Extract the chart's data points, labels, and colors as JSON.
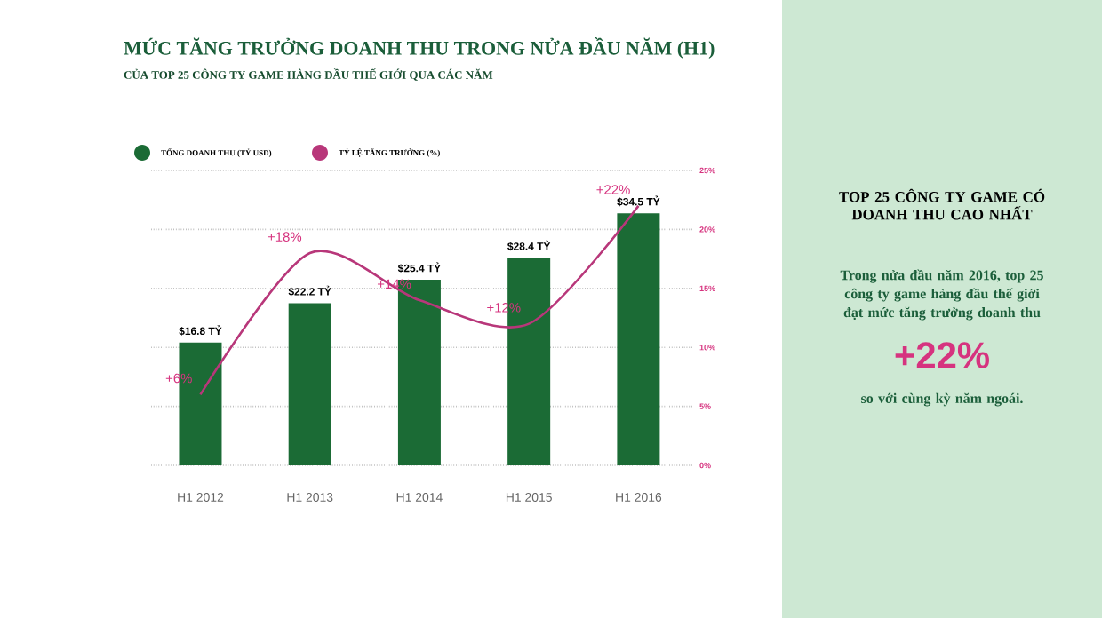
{
  "chart_data": {
    "type": "bar",
    "title": "MỨC TĂNG TRƯỞNG DOANH THU TRONG NỬA ĐẦU NĂM (H1)",
    "subtitle": "CỦA TOP 25 CÔNG TY GAME HÀNG ĐẦU THẾ GIỚI QUA CÁC NĂM",
    "categories": [
      "H1 2012",
      "H1 2013",
      "H1 2014",
      "H1 2015",
      "H1 2016"
    ],
    "series": [
      {
        "name": "TỔNG DOANH THU (TỶ USD)",
        "type": "bar",
        "color": "#1b6b35",
        "values": [
          16.8,
          22.2,
          25.4,
          28.4,
          34.5
        ],
        "value_labels": [
          "$16.8 TỶ",
          "$22.2 TỶ",
          "$25.4 TỶ",
          "$28.4 TỶ",
          "$34.5 TỶ"
        ]
      },
      {
        "name": "TỶ LỆ TĂNG TRƯỞNG (%)",
        "type": "line",
        "axis": "y2",
        "color": "#b8377a",
        "values": [
          6,
          18,
          14,
          12,
          22
        ],
        "value_labels": [
          "+6%",
          "+18%",
          "+14%",
          "+12%",
          "+22%"
        ]
      }
    ],
    "y2lim": [
      0,
      25
    ],
    "y2ticks": [
      {
        "value": 0,
        "label": "0%"
      },
      {
        "value": 5,
        "label": "5%"
      },
      {
        "value": 10,
        "label": "10%"
      },
      {
        "value": 15,
        "label": "15%"
      },
      {
        "value": 20,
        "label": "20%"
      },
      {
        "value": 25,
        "label": "25%"
      }
    ],
    "tick_labels": [
      "x",
      "y2"
    ],
    "grid": "y",
    "legend": "top left",
    "marker": "none",
    "line_style": "solid",
    "annotations": [
      "TOP 25 CÔNG TY GAME CÓ DOANH THU CAO NHẤT",
      "Trong nửa đầu năm 2016, top 25 công ty game hàng đầu thế giới đạt mức tăng trưởng doanh thu",
      "+22%",
      "so với cùng kỳ năm ngoái."
    ]
  }
}
